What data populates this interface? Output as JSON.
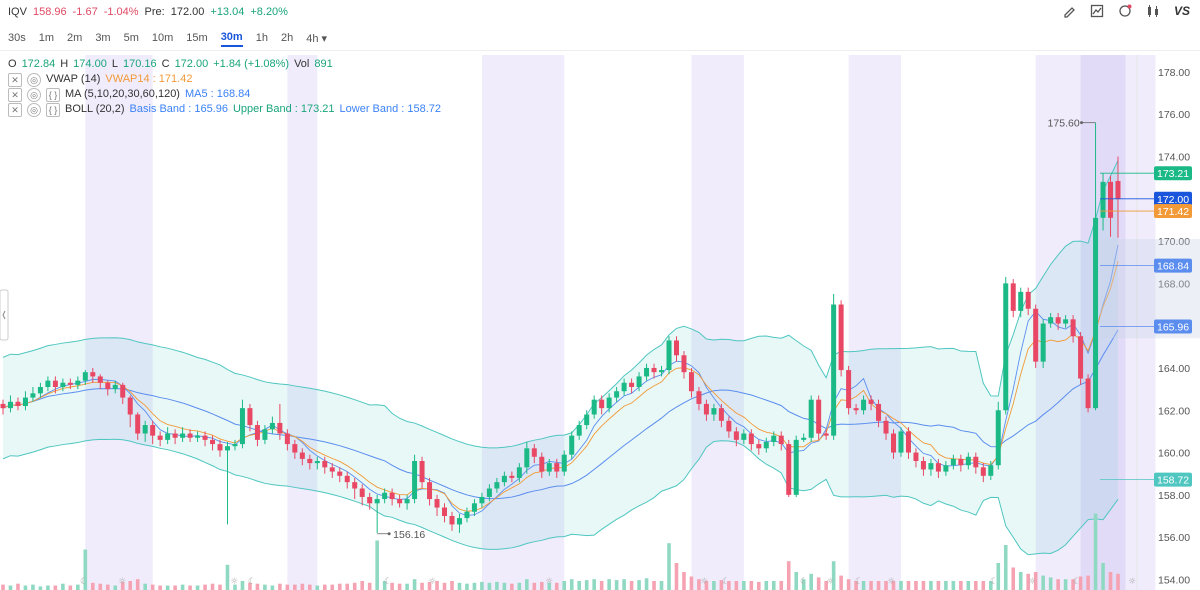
{
  "header": {
    "symbol": "IQV",
    "price": "158.96",
    "change": "-1.67",
    "change_pct": "-1.04%",
    "pre_label": "Pre:",
    "pre_price": "172.00",
    "pre_change": "+13.04",
    "pre_change_pct": "+8.20%",
    "tools": [
      "pencil-icon",
      "chart-type-icon",
      "bell-icon",
      "candles-icon"
    ],
    "vs_label": "VS"
  },
  "timeframes": {
    "items": [
      "30s",
      "1m",
      "2m",
      "3m",
      "5m",
      "10m",
      "15m",
      "30m",
      "1h",
      "2h",
      "4h"
    ],
    "active": "30m",
    "dropdown_marker": "▾"
  },
  "ohlc": {
    "o_label": "O",
    "o": "172.84",
    "h_label": "H",
    "h": "174.00",
    "l_label": "L",
    "l": "170.16",
    "c_label": "C",
    "c": "172.00",
    "chg": "+1.84 (+1.08%)",
    "vol_label": "Vol",
    "vol": "891"
  },
  "indicators": {
    "vwap_name": "VWAP (14)",
    "vwap_value": "VWAP14 : 171.42",
    "ma_name": "MA (5,10,20,30,60,120)",
    "ma_value": "MA5 : 168.84",
    "boll_name": "BOLL (20,2)",
    "boll_basis": "Basis Band : 165.96",
    "boll_upper": "Upper Band : 173.21",
    "boll_lower": "Lower Band : 158.72"
  },
  "colors": {
    "up": "#1ab985",
    "down": "#e84864",
    "vwap": "#f29a38",
    "ma": "#5b8def",
    "band": "#4fc6c0",
    "session": "#ebe6fb",
    "volume_up": "#8fd9c2",
    "volume_down": "#f5a3b2"
  },
  "chart_data": {
    "type": "candlestick",
    "y_ticks": [
      "178.00",
      "176.00",
      "174.00",
      "172.00",
      "170.00",
      "168.00",
      "166.00",
      "164.00",
      "162.00",
      "160.00",
      "158.00",
      "156.00",
      "154.00"
    ],
    "ylim": [
      153.5,
      178.8
    ],
    "price_tags": [
      {
        "label": "173.21",
        "value": 173.21,
        "color": "#1ab985"
      },
      {
        "label": "172.00",
        "value": 172.0,
        "color": "#1a56db"
      },
      {
        "label": "171.42",
        "value": 171.42,
        "color": "#f29a38"
      },
      {
        "label": "168.84",
        "value": 168.84,
        "color": "#5b8def"
      },
      {
        "label": "165.96",
        "value": 165.96,
        "color": "#5b8def"
      },
      {
        "label": "158.72",
        "value": 158.72,
        "color": "#4fc6c0"
      }
    ],
    "annotations": [
      {
        "label": "175.60",
        "value": 175.6
      },
      {
        "label": "156.16",
        "value": 156.16
      }
    ],
    "candles": [
      [
        162.3,
        162.1,
        162.5,
        161.8
      ],
      [
        162.1,
        162.4,
        162.7,
        161.9
      ],
      [
        162.4,
        162.2,
        162.6,
        162.0
      ],
      [
        162.2,
        162.6,
        162.9,
        162.0
      ],
      [
        162.6,
        162.8,
        163.1,
        162.4
      ],
      [
        162.8,
        163.1,
        163.3,
        162.6
      ],
      [
        163.1,
        163.4,
        163.6,
        162.9
      ],
      [
        163.4,
        163.1,
        163.6,
        162.8
      ],
      [
        163.1,
        163.3,
        163.5,
        162.9
      ],
      [
        163.3,
        163.2,
        163.5,
        163.0
      ],
      [
        163.2,
        163.4,
        163.6,
        163.0
      ],
      [
        163.4,
        163.8,
        163.9,
        163.2
      ],
      [
        163.8,
        163.6,
        164.0,
        163.3
      ],
      [
        163.6,
        163.3,
        163.7,
        163.0
      ],
      [
        163.3,
        163.0,
        163.4,
        162.7
      ],
      [
        163.0,
        163.2,
        163.4,
        162.8
      ],
      [
        163.2,
        162.6,
        163.3,
        162.3
      ],
      [
        162.6,
        161.8,
        162.7,
        161.2
      ],
      [
        161.8,
        160.9,
        161.9,
        160.6
      ],
      [
        160.9,
        161.3,
        161.5,
        160.5
      ],
      [
        161.3,
        160.8,
        161.5,
        160.4
      ],
      [
        160.8,
        160.6,
        161.0,
        160.3
      ],
      [
        160.6,
        160.9,
        161.2,
        160.4
      ],
      [
        160.9,
        160.7,
        161.1,
        160.4
      ],
      [
        160.7,
        160.9,
        161.2,
        160.5
      ],
      [
        160.9,
        160.7,
        161.1,
        160.5
      ],
      [
        160.7,
        160.8,
        161.0,
        160.5
      ],
      [
        160.8,
        160.6,
        161.0,
        160.3
      ],
      [
        160.6,
        160.4,
        160.8,
        160.1
      ],
      [
        160.4,
        160.1,
        160.6,
        159.8
      ],
      [
        160.1,
        160.3,
        160.5,
        156.6
      ],
      [
        160.3,
        160.4,
        160.6,
        160.1
      ],
      [
        160.4,
        162.1,
        162.5,
        160.2
      ],
      [
        162.1,
        161.3,
        162.3,
        161.0
      ],
      [
        161.3,
        160.6,
        161.5,
        160.3
      ],
      [
        160.6,
        161.1,
        161.3,
        160.4
      ],
      [
        161.1,
        161.4,
        161.7,
        160.9
      ],
      [
        161.4,
        160.9,
        162.3,
        160.6
      ],
      [
        160.9,
        160.4,
        161.1,
        160.1
      ],
      [
        160.4,
        160.0,
        160.6,
        159.7
      ],
      [
        160.0,
        159.7,
        160.2,
        159.4
      ],
      [
        159.7,
        159.5,
        159.9,
        159.2
      ],
      [
        159.5,
        159.6,
        159.8,
        159.2
      ],
      [
        159.6,
        159.3,
        159.8,
        159.0
      ],
      [
        159.3,
        159.1,
        159.5,
        158.8
      ],
      [
        159.1,
        158.9,
        159.3,
        158.6
      ],
      [
        158.9,
        158.6,
        159.1,
        158.3
      ],
      [
        158.6,
        158.3,
        158.8,
        157.8
      ],
      [
        158.3,
        157.9,
        158.5,
        157.5
      ],
      [
        157.9,
        157.6,
        158.1,
        157.3
      ],
      [
        157.6,
        157.8,
        158.0,
        156.2
      ],
      [
        157.8,
        158.1,
        158.3,
        157.6
      ],
      [
        158.1,
        157.8,
        158.3,
        157.5
      ],
      [
        157.8,
        157.6,
        158.0,
        157.4
      ],
      [
        157.6,
        157.8,
        158.0,
        157.3
      ],
      [
        157.8,
        159.6,
        159.9,
        157.6
      ],
      [
        159.6,
        158.6,
        159.8,
        158.3
      ],
      [
        158.6,
        157.8,
        158.8,
        157.5
      ],
      [
        157.8,
        157.4,
        158.0,
        157.0
      ],
      [
        157.4,
        157.0,
        157.6,
        156.7
      ],
      [
        157.0,
        156.6,
        157.2,
        156.3
      ],
      [
        156.6,
        156.9,
        157.1,
        156.2
      ],
      [
        156.9,
        157.2,
        157.4,
        156.7
      ],
      [
        157.2,
        157.6,
        157.8,
        157.0
      ],
      [
        157.6,
        157.9,
        158.1,
        157.4
      ],
      [
        157.9,
        158.3,
        158.5,
        157.7
      ],
      [
        158.3,
        158.6,
        158.8,
        158.1
      ],
      [
        158.6,
        158.9,
        159.1,
        158.4
      ],
      [
        158.9,
        158.8,
        159.1,
        158.6
      ],
      [
        158.8,
        159.3,
        159.5,
        158.6
      ],
      [
        159.3,
        160.2,
        160.5,
        159.0
      ],
      [
        160.2,
        159.8,
        160.4,
        159.5
      ],
      [
        159.8,
        159.1,
        160.0,
        158.8
      ],
      [
        159.1,
        159.5,
        159.7,
        158.9
      ],
      [
        159.5,
        159.1,
        159.7,
        158.8
      ],
      [
        159.1,
        159.9,
        160.1,
        158.9
      ],
      [
        159.9,
        160.8,
        161.0,
        159.7
      ],
      [
        160.8,
        161.3,
        161.5,
        160.6
      ],
      [
        161.3,
        161.8,
        162.0,
        161.1
      ],
      [
        161.8,
        162.5,
        162.7,
        161.6
      ],
      [
        162.5,
        162.1,
        162.7,
        161.8
      ],
      [
        162.1,
        162.6,
        162.8,
        161.9
      ],
      [
        162.6,
        162.9,
        163.1,
        162.4
      ],
      [
        162.9,
        163.3,
        163.5,
        162.7
      ],
      [
        163.3,
        163.1,
        163.5,
        162.8
      ],
      [
        163.1,
        163.6,
        163.8,
        162.9
      ],
      [
        163.6,
        164.0,
        164.2,
        163.4
      ],
      [
        164.0,
        163.8,
        164.2,
        163.5
      ],
      [
        163.8,
        163.9,
        164.1,
        163.6
      ],
      [
        163.9,
        165.3,
        165.5,
        163.7
      ],
      [
        165.3,
        164.6,
        165.5,
        164.3
      ],
      [
        164.6,
        163.8,
        164.8,
        163.5
      ],
      [
        163.8,
        162.9,
        164.0,
        162.6
      ],
      [
        162.9,
        162.3,
        163.1,
        162.0
      ],
      [
        162.3,
        161.8,
        162.5,
        161.5
      ],
      [
        161.8,
        162.1,
        162.3,
        161.5
      ],
      [
        162.1,
        161.5,
        162.3,
        161.2
      ],
      [
        161.5,
        161.0,
        161.7,
        160.7
      ],
      [
        161.0,
        160.6,
        161.2,
        160.3
      ],
      [
        160.6,
        160.9,
        161.1,
        160.4
      ],
      [
        160.9,
        160.4,
        161.1,
        160.1
      ],
      [
        160.4,
        160.2,
        160.6,
        159.9
      ],
      [
        160.2,
        160.5,
        160.7,
        160.0
      ],
      [
        160.5,
        160.8,
        161.0,
        160.3
      ],
      [
        160.8,
        160.4,
        161.0,
        160.1
      ],
      [
        160.4,
        158.0,
        160.6,
        157.9
      ],
      [
        158.0,
        160.6,
        160.8,
        157.9
      ],
      [
        160.6,
        160.7,
        160.9,
        160.5
      ],
      [
        160.7,
        162.5,
        162.7,
        160.5
      ],
      [
        162.5,
        160.9,
        162.7,
        160.6
      ],
      [
        160.9,
        160.8,
        161.1,
        160.6
      ],
      [
        160.8,
        167.0,
        167.5,
        160.6
      ],
      [
        167.0,
        163.9,
        167.2,
        163.6
      ],
      [
        163.9,
        162.1,
        164.1,
        161.8
      ],
      [
        162.1,
        162.0,
        162.3,
        161.8
      ],
      [
        162.0,
        162.5,
        162.7,
        161.8
      ],
      [
        162.5,
        162.3,
        162.7,
        162.0
      ],
      [
        162.3,
        161.5,
        162.5,
        161.2
      ],
      [
        161.5,
        160.9,
        161.7,
        160.6
      ],
      [
        160.9,
        160.0,
        161.1,
        159.7
      ],
      [
        160.0,
        161.0,
        161.2,
        159.8
      ],
      [
        161.0,
        160.0,
        161.2,
        159.7
      ],
      [
        160.0,
        159.6,
        160.2,
        159.3
      ],
      [
        159.6,
        159.2,
        159.8,
        158.9
      ],
      [
        159.2,
        159.5,
        159.7,
        158.9
      ],
      [
        159.5,
        159.1,
        159.7,
        158.8
      ],
      [
        159.1,
        159.4,
        159.6,
        158.9
      ],
      [
        159.4,
        159.7,
        159.9,
        159.2
      ],
      [
        159.7,
        159.4,
        159.9,
        159.1
      ],
      [
        159.4,
        159.8,
        160.0,
        159.2
      ],
      [
        159.8,
        159.3,
        160.0,
        159.0
      ],
      [
        159.3,
        158.9,
        159.5,
        158.6
      ],
      [
        158.9,
        159.4,
        159.6,
        158.7
      ],
      [
        159.4,
        162.0,
        162.4,
        159.2
      ],
      [
        162.0,
        168.0,
        168.3,
        161.8
      ],
      [
        168.0,
        166.7,
        168.2,
        166.4
      ],
      [
        166.7,
        167.6,
        167.8,
        166.4
      ],
      [
        167.6,
        166.8,
        167.8,
        166.5
      ],
      [
        166.8,
        164.3,
        167.0,
        164.0
      ],
      [
        164.3,
        166.1,
        166.3,
        164.0
      ],
      [
        166.1,
        166.4,
        166.6,
        165.9
      ],
      [
        166.4,
        166.1,
        166.6,
        165.8
      ],
      [
        166.1,
        166.3,
        166.5,
        165.9
      ],
      [
        166.3,
        165.5,
        166.5,
        165.2
      ],
      [
        165.5,
        163.5,
        165.7,
        163.2
      ],
      [
        163.5,
        162.1,
        163.7,
        161.9
      ],
      [
        162.1,
        171.1,
        175.6,
        162.0
      ],
      [
        171.1,
        172.8,
        173.2,
        170.5
      ],
      [
        172.8,
        171.1,
        173.1,
        170.2
      ],
      [
        172.84,
        172.0,
        174.0,
        170.16
      ]
    ],
    "volumes": [
      0.06,
      0.05,
      0.07,
      0.05,
      0.06,
      0.04,
      0.05,
      0.05,
      0.07,
      0.05,
      0.06,
      0.45,
      0.08,
      0.07,
      0.06,
      0.05,
      0.09,
      0.1,
      0.12,
      0.07,
      0.06,
      0.05,
      0.05,
      0.05,
      0.06,
      0.05,
      0.05,
      0.06,
      0.07,
      0.06,
      0.28,
      0.06,
      0.1,
      0.08,
      0.07,
      0.06,
      0.05,
      0.07,
      0.06,
      0.06,
      0.07,
      0.06,
      0.05,
      0.06,
      0.06,
      0.07,
      0.07,
      0.08,
      0.1,
      0.08,
      0.55,
      0.1,
      0.08,
      0.07,
      0.07,
      0.12,
      0.08,
      0.09,
      0.1,
      0.08,
      0.1,
      0.08,
      0.07,
      0.08,
      0.09,
      0.08,
      0.09,
      0.08,
      0.07,
      0.08,
      0.12,
      0.08,
      0.09,
      0.08,
      0.08,
      0.1,
      0.12,
      0.1,
      0.11,
      0.12,
      0.1,
      0.12,
      0.11,
      0.12,
      0.1,
      0.11,
      0.13,
      0.1,
      0.1,
      0.52,
      0.3,
      0.2,
      0.15,
      0.12,
      0.1,
      0.1,
      0.11,
      0.1,
      0.1,
      0.1,
      0.1,
      0.09,
      0.1,
      0.1,
      0.1,
      0.32,
      0.2,
      0.12,
      0.18,
      0.14,
      0.1,
      0.32,
      0.16,
      0.12,
      0.1,
      0.1,
      0.1,
      0.1,
      0.1,
      0.1,
      0.1,
      0.1,
      0.1,
      0.1,
      0.1,
      0.1,
      0.1,
      0.1,
      0.1,
      0.1,
      0.1,
      0.1,
      0.1,
      0.3,
      0.5,
      0.25,
      0.2,
      0.18,
      0.2,
      0.16,
      0.14,
      0.12,
      0.12,
      0.12,
      0.15,
      0.16,
      0.85,
      0.3,
      0.2,
      0.18
    ]
  }
}
